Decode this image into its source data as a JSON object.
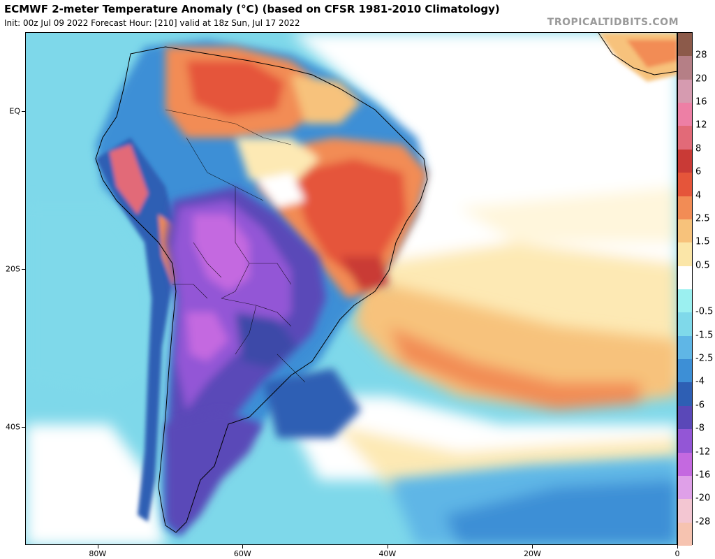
{
  "header": {
    "title": "ECMWF 2-meter Temperature Anomaly (°C) (based on CFSR 1981-2010 Climatology)",
    "subtitle": "Init: 00z Jul 09 2022   Forecast Hour: [210]   valid at 18z Sun, Jul 17 2022",
    "brand": "TROPICALTIDBITS.COM"
  },
  "map": {
    "lon_range": [
      -90,
      0
    ],
    "lat_range": [
      -55,
      10
    ],
    "lat_labels": [
      {
        "label": "EQ",
        "lat": 0
      },
      {
        "label": "20S",
        "lat": -20
      },
      {
        "label": "40S",
        "lat": -40
      }
    ],
    "lon_labels": [
      {
        "label": "80W",
        "lon": -80
      },
      {
        "label": "60W",
        "lon": -60
      },
      {
        "label": "40W",
        "lon": -40
      },
      {
        "label": "20W",
        "lon": -20
      },
      {
        "label": "0",
        "lon": 0
      }
    ],
    "ocean_color": "#7ed8ea"
  },
  "colorbar": {
    "levels": [
      {
        "label": "28",
        "color": "#8c5a4a"
      },
      {
        "label": "20",
        "color": "#b57f86"
      },
      {
        "label": "16",
        "color": "#d69bb0"
      },
      {
        "label": "12",
        "color": "#ed7fa5"
      },
      {
        "label": "8",
        "color": "#e26a78"
      },
      {
        "label": "6",
        "color": "#c93a36"
      },
      {
        "label": "4",
        "color": "#e5553a"
      },
      {
        "label": "2.5",
        "color": "#f28c55"
      },
      {
        "label": "1.5",
        "color": "#f7c27b"
      },
      {
        "label": "0.5",
        "color": "#fbe6a8"
      },
      {
        "label": "",
        "color": "#ffffff"
      },
      {
        "label": "-0.5",
        "color": "#9bf0f0"
      },
      {
        "label": "-1.5",
        "color": "#7fd9ea"
      },
      {
        "label": "-2.5",
        "color": "#5fb6e6"
      },
      {
        "label": "-4",
        "color": "#3d8fd6"
      },
      {
        "label": "-6",
        "color": "#2e5fb4"
      },
      {
        "label": "-8",
        "color": "#5a48b8"
      },
      {
        "label": "-12",
        "color": "#9356d6"
      },
      {
        "label": "-16",
        "color": "#c469e0"
      },
      {
        "label": "-20",
        "color": "#dfa0e8"
      },
      {
        "label": "-28",
        "color": "#f3c6d2"
      }
    ],
    "bottom_color": "#f6c3b0"
  }
}
